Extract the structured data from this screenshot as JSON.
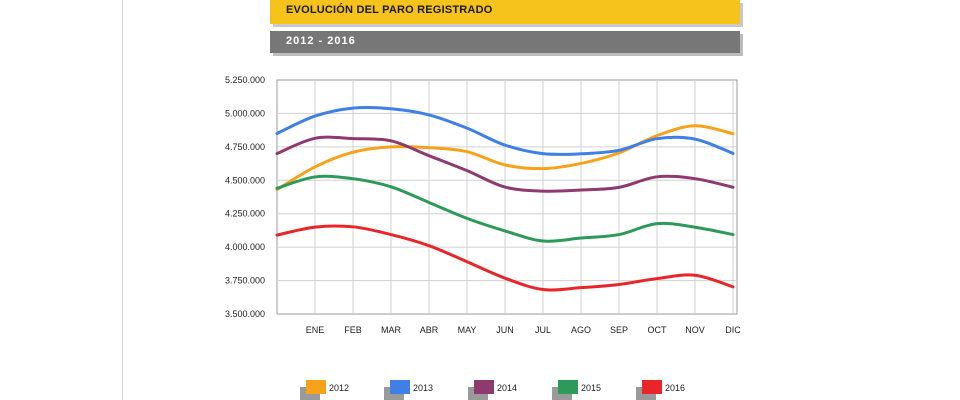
{
  "header": {
    "title": "EVOLUCIÓN DEL PARO REGISTRADO",
    "subtitle": "2012 - 2016"
  },
  "chart_data": {
    "type": "line",
    "title": "EVOLUCIÓN DEL PARO REGISTRADO",
    "subtitle": "2012 - 2016",
    "xlabel": "",
    "ylabel": "",
    "categories": [
      "ENE",
      "FEB",
      "MAR",
      "ABR",
      "MAY",
      "JUN",
      "JUL",
      "AGO",
      "SEP",
      "OCT",
      "NOV",
      "DIC"
    ],
    "ylim": [
      3500000,
      5250000
    ],
    "yticks": [
      3500000,
      3750000,
      4000000,
      4250000,
      4500000,
      4750000,
      5000000,
      5250000
    ],
    "ytick_labels": [
      "3.500.000",
      "3.750.000",
      "4.000.000",
      "4.250.000",
      "4.500.000",
      "4.750.000",
      "5.000.000",
      "5.250.000"
    ],
    "grid": true,
    "legend": "bottom",
    "series": [
      {
        "name": "2012",
        "color": "#f7a21b",
        "start": 4430000,
        "values": [
          4600000,
          4710000,
          4750000,
          4744000,
          4714000,
          4615000,
          4587000,
          4626000,
          4705000,
          4834000,
          4908000,
          4848000
        ]
      },
      {
        "name": "2013",
        "color": "#3f7fe6",
        "start": 4850000,
        "values": [
          4980000,
          5040000,
          5035000,
          4989000,
          4890000,
          4763000,
          4699000,
          4698000,
          4724000,
          4811000,
          4808000,
          4701000
        ]
      },
      {
        "name": "2014",
        "color": "#8e3a6e",
        "start": 4700000,
        "values": [
          4814000,
          4812000,
          4795000,
          4684000,
          4572000,
          4449000,
          4419000,
          4427000,
          4447000,
          4526000,
          4512000,
          4448000
        ]
      },
      {
        "name": "2015",
        "color": "#2e9a5a",
        "start": 4440000,
        "values": [
          4525000,
          4512000,
          4451000,
          4334000,
          4215000,
          4121000,
          4046000,
          4068000,
          4094000,
          4176000,
          4149000,
          4094000
        ]
      },
      {
        "name": "2016",
        "color": "#e8262a",
        "start": 4090000,
        "values": [
          4150000,
          4152000,
          4094000,
          4011000,
          3891000,
          3768000,
          3683000,
          3697000,
          3721000,
          3765000,
          3790000,
          3703000
        ]
      }
    ]
  }
}
